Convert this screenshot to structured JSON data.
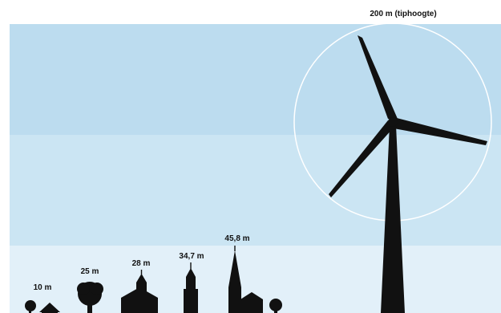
{
  "colors": {
    "sky_top": "#bcdcef",
    "sky_middle": "#cbe5f3",
    "sky_bottom": "#e2f0f9",
    "silhouette": "#111111",
    "rotor_circle": "#ffffff"
  },
  "objects": [
    {
      "id": "house",
      "height_label": "10 m",
      "icon": "house-icon"
    },
    {
      "id": "tree",
      "height_label": "25 m",
      "icon": "tree-icon"
    },
    {
      "id": "church-small",
      "height_label": "28 m",
      "icon": "church-icon"
    },
    {
      "id": "tower",
      "height_label": "34,7 m",
      "icon": "tower-icon"
    },
    {
      "id": "church-tall",
      "height_label": "45,8 m",
      "icon": "church-spire-icon"
    },
    {
      "id": "wind-turbine",
      "height_label": "200 m (tiphoogte)",
      "icon": "wind-turbine-icon"
    }
  ]
}
